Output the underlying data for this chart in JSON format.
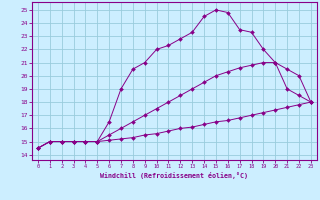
{
  "xlabel": "Windchill (Refroidissement éolien,°C)",
  "x_ticks": [
    0,
    1,
    2,
    3,
    4,
    5,
    6,
    7,
    8,
    9,
    10,
    11,
    12,
    13,
    14,
    15,
    16,
    17,
    18,
    19,
    20,
    21,
    22,
    23
  ],
  "y_ticks": [
    14,
    15,
    16,
    17,
    18,
    19,
    20,
    21,
    22,
    23,
    24,
    25
  ],
  "ylim": [
    13.6,
    25.6
  ],
  "xlim": [
    -0.5,
    23.5
  ],
  "line_color": "#880088",
  "bg_color": "#cceeff",
  "grid_color": "#99ccdd",
  "line1_x": [
    0,
    1,
    2,
    3,
    4,
    5,
    6,
    7,
    8,
    9,
    10,
    11,
    12,
    13,
    14,
    15,
    16,
    17,
    18,
    19,
    20,
    21,
    22,
    23
  ],
  "line1_y": [
    14.5,
    15.0,
    15.0,
    15.0,
    15.0,
    15.0,
    15.1,
    15.2,
    15.3,
    15.5,
    15.6,
    15.8,
    16.0,
    16.1,
    16.3,
    16.5,
    16.6,
    16.8,
    17.0,
    17.2,
    17.4,
    17.6,
    17.8,
    18.0
  ],
  "line2_x": [
    0,
    1,
    2,
    3,
    4,
    5,
    6,
    7,
    8,
    9,
    10,
    11,
    12,
    13,
    14,
    15,
    16,
    17,
    18,
    19,
    20,
    21,
    22,
    23
  ],
  "line2_y": [
    14.5,
    15.0,
    15.0,
    15.0,
    15.0,
    15.0,
    15.5,
    16.0,
    16.5,
    17.0,
    17.5,
    18.0,
    18.5,
    19.0,
    19.5,
    20.0,
    20.3,
    20.6,
    20.8,
    21.0,
    21.0,
    20.5,
    20.0,
    18.0
  ],
  "line3_x": [
    0,
    1,
    2,
    3,
    4,
    5,
    6,
    7,
    8,
    9,
    10,
    11,
    12,
    13,
    14,
    15,
    16,
    17,
    18,
    19,
    20,
    21,
    22,
    23
  ],
  "line3_y": [
    14.5,
    15.0,
    15.0,
    15.0,
    15.0,
    15.0,
    16.5,
    19.0,
    20.5,
    21.0,
    22.0,
    22.3,
    22.8,
    23.3,
    24.5,
    25.0,
    24.8,
    23.5,
    23.3,
    22.0,
    21.0,
    19.0,
    18.5,
    18.0
  ]
}
